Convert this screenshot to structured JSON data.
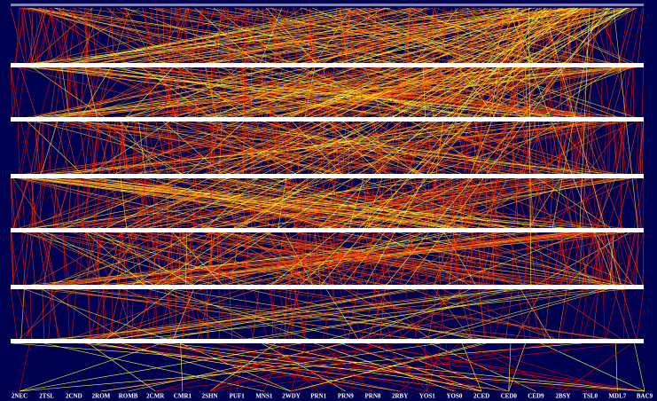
{
  "labels": [
    "2NEC",
    "2TSL",
    "2CND",
    "2ROM",
    "ROMB",
    "2CMR",
    "CMR1",
    "2SHN",
    "PUF1",
    "MNS1",
    "2WDY",
    "PRN1",
    "PRN9",
    "PRN8",
    "2RBY",
    "YOS1",
    "YOS0",
    "2CED",
    "CED0",
    "CED9",
    "2BSY",
    "TSL0",
    "MDL7",
    "BAC9"
  ]
}
